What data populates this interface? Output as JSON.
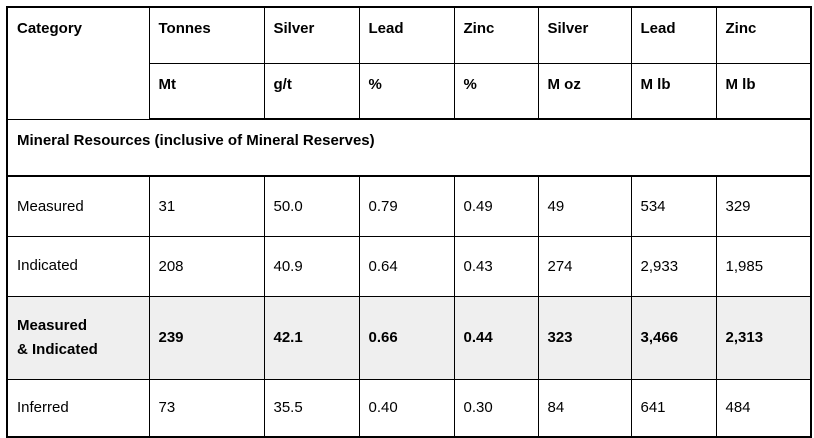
{
  "table": {
    "header": {
      "category_label": "Category",
      "columns": [
        {
          "label": "Tonnes",
          "unit": "Mt"
        },
        {
          "label": "Silver",
          "unit": "g/t"
        },
        {
          "label": "Lead",
          "unit": "%"
        },
        {
          "label": "Zinc",
          "unit": "%"
        },
        {
          "label": "Silver",
          "unit": "M oz"
        },
        {
          "label": "Lead",
          "unit": "M lb"
        },
        {
          "label": "Zinc",
          "unit": "M lb"
        }
      ]
    },
    "section_title": "Mineral Resources (inclusive of Mineral Reserves)",
    "rows": [
      {
        "category": "Measured",
        "values": [
          "31",
          "50.0",
          "0.79",
          "0.49",
          "49",
          "534",
          "329"
        ]
      },
      {
        "category": "Indicated",
        "values": [
          "208",
          "40.9",
          "0.64",
          "0.43",
          "274",
          "2,933",
          "1,985"
        ]
      },
      {
        "category": "Measured\n& Indicated",
        "values": [
          "239",
          "42.1",
          "0.66",
          "0.44",
          "323",
          "3,466",
          "2,313"
        ]
      },
      {
        "category": "Inferred",
        "values": [
          "73",
          "35.5",
          "0.40",
          "0.30",
          "84",
          "641",
          "484"
        ]
      }
    ],
    "colors": {
      "border": "#000000",
      "text": "#000000",
      "highlight_row_background": "#efefef",
      "background": "#ffffff"
    }
  }
}
